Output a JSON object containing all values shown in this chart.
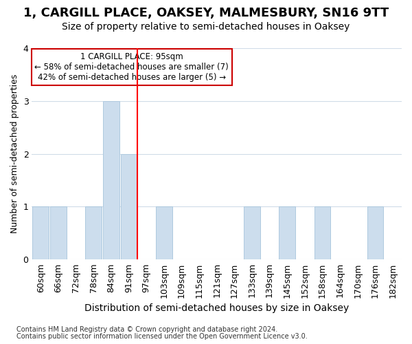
{
  "title": "1, CARGILL PLACE, OAKSEY, MALMESBURY, SN16 9TT",
  "subtitle": "Size of property relative to semi-detached houses in Oaksey",
  "xlabel": "Distribution of semi-detached houses by size in Oaksey",
  "ylabel": "Number of semi-detached properties",
  "footnote1": "Contains HM Land Registry data © Crown copyright and database right 2024.",
  "footnote2": "Contains public sector information licensed under the Open Government Licence v3.0.",
  "annotation_line1": "1 CARGILL PLACE: 95sqm",
  "annotation_line2": "← 58% of semi-detached houses are smaller (7)",
  "annotation_line3": "42% of semi-detached houses are larger (5) →",
  "bar_color": "#ccdded",
  "bar_edge_color": "#aec9df",
  "vline_color": "#ff0000",
  "vline_x": 5.5,
  "categories": [
    "60sqm",
    "66sqm",
    "72sqm",
    "78sqm",
    "84sqm",
    "91sqm",
    "97sqm",
    "103sqm",
    "109sqm",
    "115sqm",
    "121sqm",
    "127sqm",
    "133sqm",
    "139sqm",
    "145sqm",
    "152sqm",
    "158sqm",
    "164sqm",
    "170sqm",
    "176sqm",
    "182sqm"
  ],
  "values": [
    1,
    1,
    0,
    1,
    3,
    2,
    0,
    1,
    0,
    0,
    0,
    0,
    1,
    0,
    1,
    0,
    1,
    0,
    0,
    1,
    0
  ],
  "ylim": [
    0,
    4
  ],
  "yticks": [
    0,
    1,
    2,
    3,
    4
  ],
  "bg_color": "#ffffff",
  "plot_bg_color": "#ffffff",
  "grid_color": "#d0dce8",
  "annotation_box_bg": "#ffffff",
  "annotation_box_edge": "#cc0000",
  "title_fontsize": 13,
  "subtitle_fontsize": 10,
  "xlabel_fontsize": 10,
  "ylabel_fontsize": 9,
  "tick_fontsize": 9,
  "footnote_fontsize": 7
}
